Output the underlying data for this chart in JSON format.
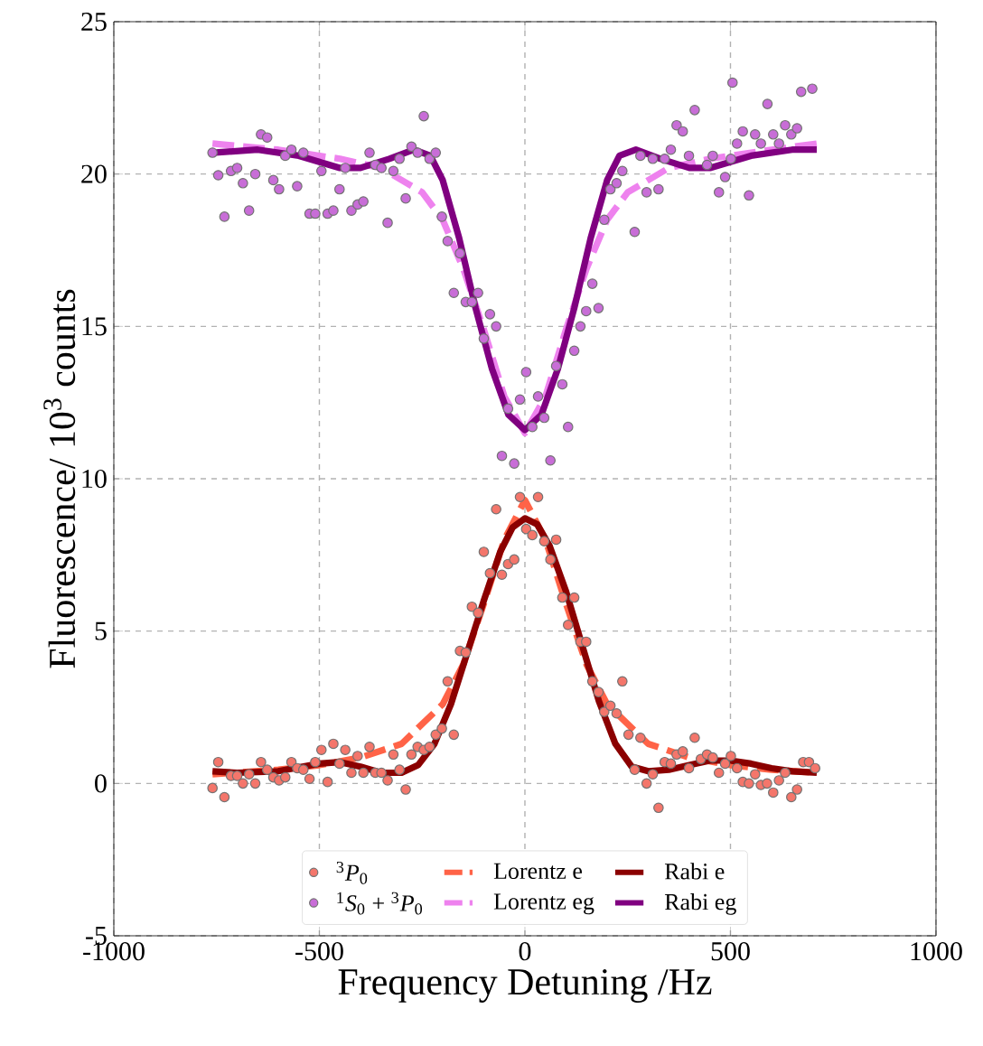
{
  "chart_data": {
    "type": "scatter",
    "xlabel": "Frequency Detuning /Hz",
    "ylabel": "Fluorescence/ 10$^{3}$ counts",
    "xlim": [
      -1000,
      1000
    ],
    "ylim": [
      -5,
      25
    ],
    "xticks": [
      -1000,
      -500,
      0,
      500,
      1000
    ],
    "yticks": [
      -5,
      0,
      5,
      10,
      15,
      20,
      25
    ],
    "grid": true,
    "legend": "bottom",
    "series": [
      {
        "name": "$^{3}$*P*$_{0}$",
        "marker": "circle",
        "color": "#f4766b",
        "x": [
          -760,
          -746,
          -731,
          -715,
          -700,
          -686,
          -671,
          -656,
          -642,
          -627,
          -612,
          -598,
          -583,
          -568,
          -554,
          -539,
          -524,
          -510,
          -495,
          -480,
          -466,
          -451,
          -437,
          -422,
          -407,
          -393,
          -378,
          -364,
          -349,
          -334,
          -320,
          -305,
          -290,
          -276,
          -261,
          -246,
          -232,
          -217,
          -202,
          -188,
          -173,
          -158,
          -144,
          -129,
          -114,
          -100,
          -85,
          -70,
          -56,
          -41,
          -26,
          -12,
          3,
          18,
          32,
          47,
          62,
          76,
          91,
          105,
          120,
          135,
          149,
          164,
          179,
          193,
          208,
          223,
          237,
          252,
          267,
          281,
          296,
          311,
          325,
          340,
          355,
          369,
          384,
          399,
          413,
          428,
          443,
          457,
          472,
          487,
          501,
          516,
          530,
          545,
          560,
          574,
          589,
          604,
          618,
          633,
          648,
          662,
          677,
          691,
          706
        ],
        "values": [
          -0.15,
          0.7,
          -0.45,
          0.25,
          0.25,
          0.0,
          0.3,
          0.0,
          0.7,
          0.45,
          0.2,
          0.1,
          0.2,
          0.7,
          0.5,
          0.45,
          0.15,
          0.7,
          1.1,
          0.05,
          1.3,
          0.65,
          1.1,
          0.35,
          0.9,
          0.35,
          1.2,
          0.35,
          0.35,
          0.1,
          0.95,
          0.45,
          -0.2,
          0.95,
          1.2,
          1.1,
          1.2,
          1.6,
          1.8,
          3.35,
          1.6,
          4.35,
          4.3,
          5.8,
          5.6,
          7.6,
          6.9,
          9.0,
          6.85,
          7.2,
          7.35,
          9.4,
          8.35,
          8.15,
          9.4,
          7.95,
          7.35,
          8.0,
          6.1,
          5.2,
          6.1,
          4.65,
          4.65,
          3.35,
          3.0,
          2.35,
          2.55,
          2.3,
          3.35,
          1.6,
          0.45,
          1.5,
          0.0,
          0.3,
          -0.8,
          0.7,
          0.65,
          0.95,
          1.05,
          0.5,
          1.5,
          0.8,
          0.95,
          0.85,
          0.35,
          0.65,
          0.9,
          0.5,
          0.05,
          0.0,
          0.3,
          -0.05,
          0.0,
          -0.3,
          0.1,
          0.35,
          -0.45,
          -0.2,
          0.7,
          0.7,
          0.5
        ]
      },
      {
        "name": "$^{1}$*S*$_{0}$ + $^{3}$*P*$_{0}$",
        "marker": "circle",
        "color": "#c86dd7",
        "x": [
          -760,
          -746,
          -731,
          -715,
          -700,
          -686,
          -671,
          -656,
          -642,
          -627,
          -612,
          -598,
          -583,
          -568,
          -554,
          -539,
          -524,
          -510,
          -495,
          -480,
          -466,
          -451,
          -437,
          -422,
          -407,
          -393,
          -378,
          -364,
          -349,
          -334,
          -320,
          -305,
          -290,
          -276,
          -261,
          -246,
          -232,
          -217,
          -202,
          -188,
          -173,
          -158,
          -144,
          -129,
          -114,
          -100,
          -85,
          -70,
          -56,
          -41,
          -26,
          -12,
          3,
          18,
          32,
          47,
          62,
          76,
          91,
          105,
          120,
          135,
          149,
          164,
          179,
          193,
          208,
          223,
          237,
          267,
          281,
          296,
          311,
          325,
          340,
          355,
          369,
          384,
          399,
          413,
          443,
          457,
          472,
          487,
          501,
          505,
          516,
          530,
          545,
          560,
          574,
          590,
          604,
          618,
          633,
          648,
          662,
          672,
          699
        ],
        "values": [
          20.7,
          19.96,
          18.6,
          20.1,
          20.2,
          19.7,
          18.8,
          20.0,
          21.3,
          21.2,
          19.8,
          19.5,
          20.6,
          20.8,
          19.6,
          20.7,
          18.7,
          18.7,
          20.1,
          18.7,
          18.8,
          19.5,
          20.2,
          18.8,
          19.0,
          19.1,
          20.7,
          20.3,
          20.2,
          18.4,
          20.1,
          20.5,
          19.2,
          20.9,
          20.7,
          21.9,
          20.5,
          20.7,
          18.6,
          17.8,
          16.1,
          17.4,
          15.8,
          15.8,
          16.1,
          14.6,
          15.4,
          15.0,
          10.75,
          12.3,
          10.5,
          12.6,
          13.5,
          11.7,
          12.7,
          12.0,
          10.6,
          13.7,
          13.1,
          11.7,
          14.2,
          15.0,
          15.5,
          16.4,
          15.6,
          18.5,
          19.5,
          19.7,
          20.1,
          18.1,
          20.6,
          19.4,
          20.5,
          19.5,
          20.5,
          20.8,
          21.6,
          21.4,
          20.6,
          22.1,
          20.3,
          20.6,
          19.4,
          19.9,
          20.5,
          23.0,
          21.0,
          21.4,
          19.3,
          21.3,
          21.0,
          22.3,
          21.3,
          21.0,
          21.6,
          21.3,
          21.5,
          22.7,
          22.8
        ]
      },
      {
        "name": "Lorentz e",
        "type": "line",
        "line_style": "dashed",
        "color": "#ff6347",
        "x": [
          -760,
          -600,
          -500,
          -400,
          -300,
          -200,
          -150,
          -100,
          -50,
          0,
          50,
          100,
          150,
          200,
          300,
          400,
          500,
          600,
          710
        ],
        "values": [
          0.3,
          0.45,
          0.6,
          0.85,
          1.3,
          2.6,
          3.9,
          5.9,
          8.0,
          9.3,
          8.0,
          5.9,
          3.9,
          2.6,
          1.3,
          0.85,
          0.6,
          0.45,
          0.35
        ]
      },
      {
        "name": "Lorentz eg",
        "type": "line",
        "line_style": "dashed",
        "color": "#ee82ee",
        "x": [
          -760,
          -600,
          -450,
          -350,
          -250,
          -200,
          -150,
          -100,
          -50,
          0,
          50,
          100,
          150,
          200,
          250,
          350,
          450,
          600,
          710
        ],
        "values": [
          21.0,
          20.8,
          20.5,
          20.2,
          19.4,
          18.5,
          16.9,
          14.9,
          12.7,
          11.5,
          12.7,
          14.9,
          16.9,
          18.5,
          19.4,
          20.2,
          20.5,
          20.8,
          21.0
        ]
      },
      {
        "name": "Rabi e",
        "type": "line",
        "line_style": "solid",
        "color": "#8b0000",
        "x": [
          -760,
          -700,
          -600,
          -500,
          -450,
          -400,
          -350,
          -300,
          -260,
          -220,
          -180,
          -140,
          -100,
          -60,
          -30,
          0,
          30,
          60,
          100,
          140,
          180,
          220,
          260,
          300,
          350,
          400,
          450,
          500,
          550,
          600,
          650,
          710
        ],
        "values": [
          0.4,
          0.35,
          0.4,
          0.65,
          0.7,
          0.55,
          0.35,
          0.35,
          0.6,
          1.3,
          2.6,
          4.3,
          6.0,
          7.6,
          8.4,
          8.7,
          8.5,
          7.8,
          6.3,
          4.5,
          2.7,
          1.3,
          0.55,
          0.4,
          0.45,
          0.6,
          0.75,
          0.75,
          0.65,
          0.5,
          0.4,
          0.35
        ]
      },
      {
        "name": "Rabi eg",
        "type": "line",
        "line_style": "solid",
        "color": "#800080",
        "x": [
          -760,
          -650,
          -550,
          -450,
          -400,
          -330,
          -270,
          -230,
          -200,
          -160,
          -120,
          -80,
          -40,
          0,
          40,
          80,
          120,
          160,
          200,
          230,
          270,
          330,
          400,
          450,
          550,
          650,
          710
        ],
        "values": [
          20.7,
          20.8,
          20.6,
          20.2,
          20.2,
          20.5,
          20.8,
          20.6,
          19.8,
          17.9,
          15.6,
          13.6,
          12.1,
          11.6,
          12.1,
          13.6,
          15.6,
          17.9,
          19.8,
          20.6,
          20.8,
          20.5,
          20.2,
          20.2,
          20.6,
          20.8,
          20.8
        ]
      }
    ]
  }
}
